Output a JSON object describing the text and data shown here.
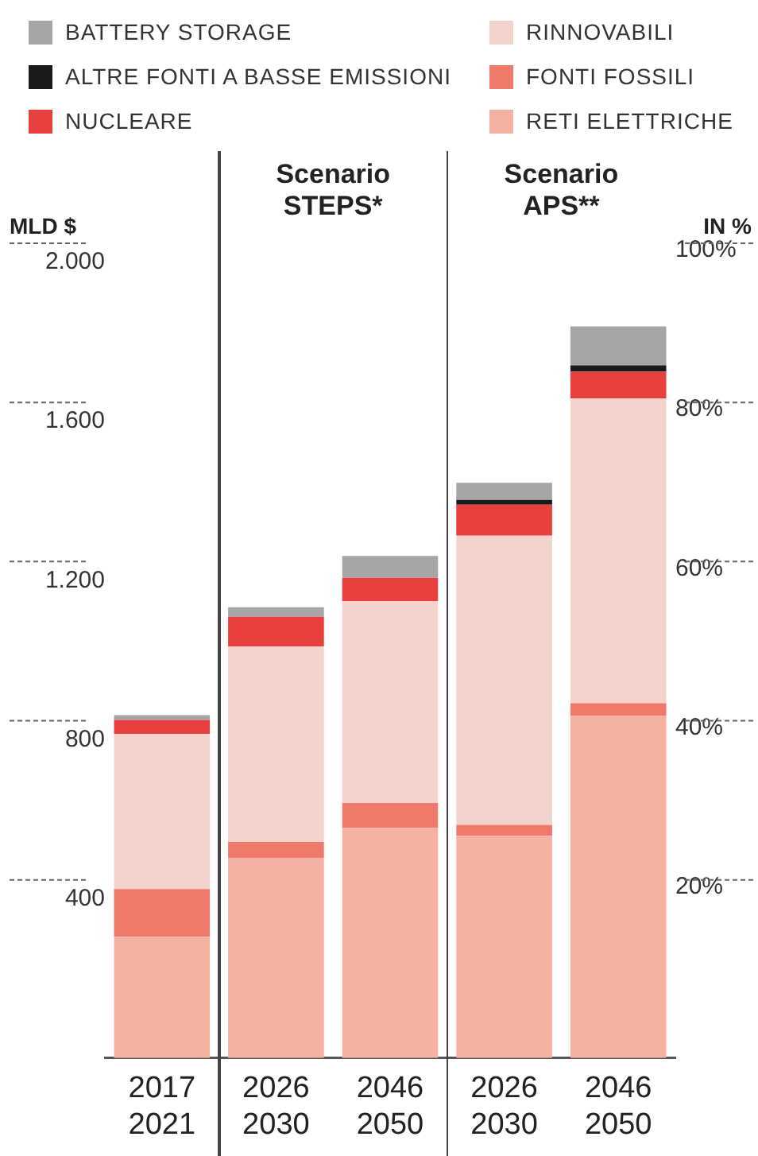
{
  "chart_data": {
    "type": "bar",
    "stacked": true,
    "categories": [
      "2017 2021",
      "2026 2030",
      "2046 2050",
      "2026 2030",
      "2046 2050"
    ],
    "series": [
      {
        "name": "RETI ELETTRICHE",
        "color": "#f5b2a2",
        "values": [
          305,
          503,
          578,
          558,
          861
        ]
      },
      {
        "name": "FONTI FOSSILI",
        "color": "#ef7a6b",
        "values": [
          120,
          40,
          63,
          28,
          31
        ]
      },
      {
        "name": "RINNOVABILI",
        "color": "#f3d3cc",
        "values": [
          390,
          492,
          507,
          727,
          766
        ]
      },
      {
        "name": "NUCLEARE",
        "color": "#e8403f",
        "values": [
          35,
          74,
          59,
          78,
          67
        ]
      },
      {
        "name": "ALTRE FONTI A BASSE EMISSIONI",
        "color": "#1a1a1a",
        "values": [
          0,
          0,
          0,
          12,
          16
        ]
      },
      {
        "name": "BATTERY STORAGE",
        "color": "#a6a6a6",
        "values": [
          12,
          24,
          55,
          43,
          98
        ]
      }
    ],
    "ylabel": "MLD $",
    "y2label": "IN %",
    "ylim": [
      0,
      2000
    ],
    "yticks": [
      {
        "value": 400,
        "label": "400"
      },
      {
        "value": 800,
        "label": "800"
      },
      {
        "value": 1200,
        "label": "1.200"
      },
      {
        "value": 1600,
        "label": "1.600"
      },
      {
        "value": 2000,
        "label": "2.000"
      }
    ],
    "y2lim": [
      0,
      100
    ],
    "y2ticks": [
      {
        "value": 20,
        "label": "20%"
      },
      {
        "value": 40,
        "label": "40%"
      },
      {
        "value": 60,
        "label": "60%"
      },
      {
        "value": 80,
        "label": "80%"
      },
      {
        "value": 100,
        "label": "100%"
      }
    ],
    "annotations": [
      "Scenario STEPS*",
      "Scenario APS**"
    ],
    "grid": false,
    "legend": "top"
  }
}
